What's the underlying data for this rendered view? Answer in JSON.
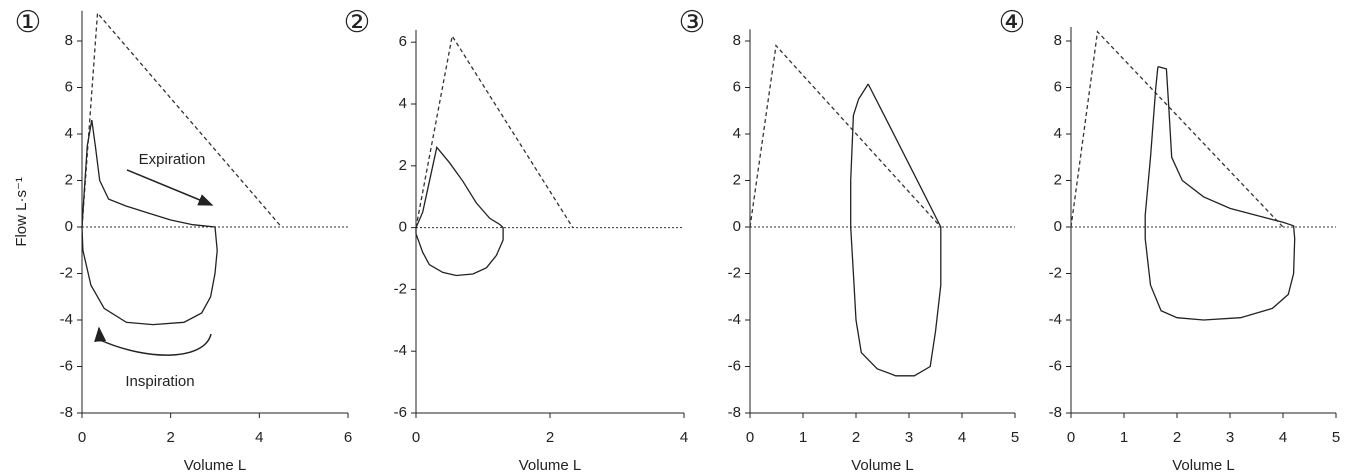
{
  "chart_data": [
    {
      "type": "line",
      "panel_label": "①",
      "x_label": "Volume L",
      "y_label": "Flow L·s⁻¹",
      "annotations": [
        "Expiration",
        "Inspiration"
      ],
      "xlim": [
        0,
        6
      ],
      "xticks": [
        0,
        2,
        4,
        6
      ],
      "ylim": [
        -8,
        9.3
      ],
      "yticks": [
        -8,
        -6,
        -4,
        -2,
        0,
        2,
        4,
        6,
        8
      ],
      "hline": 0,
      "series": [
        {
          "style": "dashed",
          "color": "#333333",
          "x": [
            0,
            0.35,
            4.5
          ],
          "values": [
            0,
            9.2,
            0
          ]
        },
        {
          "style": "solid",
          "color": "#222222",
          "x": [
            0,
            0.05,
            0.12,
            0.22,
            0.3,
            0.4,
            0.6,
            1,
            1.5,
            2,
            2.5,
            3,
            3.05,
            3,
            2.9,
            2.7,
            2.3,
            1.6,
            1,
            0.5,
            0.2,
            0.02,
            0
          ],
          "values": [
            0,
            1.5,
            3.5,
            4.6,
            3.5,
            2,
            1.2,
            0.9,
            0.6,
            0.3,
            0.1,
            0,
            -1,
            -2,
            -3,
            -3.7,
            -4.1,
            -4.2,
            -4.1,
            -3.5,
            -2.5,
            -1,
            0
          ]
        }
      ]
    },
    {
      "type": "line",
      "panel_label": "②",
      "x_label": "Volume L",
      "xlim": [
        0,
        4
      ],
      "xticks": [
        0,
        2,
        4
      ],
      "ylim": [
        -6,
        6.4
      ],
      "yticks": [
        -6,
        -4,
        -2,
        0,
        2,
        4,
        6
      ],
      "hline": 0,
      "series": [
        {
          "style": "dashed",
          "color": "#333333",
          "x": [
            0,
            0.54,
            2.34
          ],
          "values": [
            0,
            6.2,
            0
          ]
        },
        {
          "style": "solid",
          "color": "#222222",
          "x": [
            0,
            0.1,
            0.2,
            0.31,
            0.5,
            0.7,
            0.9,
            1.1,
            1.25,
            1.3,
            1.3,
            1.2,
            1.05,
            0.85,
            0.6,
            0.4,
            0.2,
            0.1,
            0,
            0
          ],
          "values": [
            0,
            0.5,
            1.5,
            2.6,
            2.1,
            1.5,
            0.8,
            0.3,
            0.1,
            0,
            -0.4,
            -0.9,
            -1.3,
            -1.5,
            -1.55,
            -1.45,
            -1.2,
            -0.8,
            -0.2,
            0
          ]
        }
      ]
    },
    {
      "type": "line",
      "panel_label": "③",
      "x_label": "Volume L",
      "xlim": [
        0,
        5
      ],
      "xticks": [
        0,
        1,
        2,
        3,
        4,
        5
      ],
      "ylim": [
        -8,
        8.5
      ],
      "yticks": [
        -8,
        -6,
        -4,
        -2,
        0,
        2,
        4,
        6,
        8
      ],
      "hline": 0,
      "series": [
        {
          "style": "dashed",
          "color": "#333333",
          "x": [
            0,
            0.49,
            3.6
          ],
          "values": [
            0,
            7.8,
            0
          ]
        },
        {
          "style": "solid",
          "color": "#222222",
          "x": [
            2.23,
            2.05,
            1.95,
            1.9,
            1.9,
            1.95,
            2.0,
            2.1,
            2.4,
            2.75,
            3.1,
            3.4,
            3.5,
            3.6,
            3.6,
            3.2,
            2.6,
            2.23
          ],
          "values": [
            6.15,
            5.5,
            4.8,
            2,
            0,
            -2,
            -4,
            -5.4,
            -6.1,
            -6.4,
            -6.4,
            -6,
            -4.5,
            -2.5,
            0,
            1.8,
            4.5,
            6.15
          ]
        }
      ]
    },
    {
      "type": "line",
      "panel_label": "④",
      "x_label": "Volume L",
      "xlim": [
        0,
        5
      ],
      "xticks": [
        0,
        1,
        2,
        3,
        4,
        5
      ],
      "ylim": [
        -8,
        8.6
      ],
      "yticks": [
        -8,
        -6,
        -4,
        -2,
        0,
        2,
        4,
        6,
        8
      ],
      "hline": 0,
      "series": [
        {
          "style": "dashed",
          "color": "#333333",
          "x": [
            0,
            0.5,
            4.0
          ],
          "values": [
            0,
            8.4,
            0
          ]
        },
        {
          "style": "solid",
          "color": "#222222",
          "x": [
            1.64,
            1.8,
            1.85,
            1.9,
            2.1,
            2.5,
            3,
            3.5,
            4,
            4.2,
            4.22,
            4.2,
            4.1,
            3.8,
            3.2,
            2.5,
            2,
            1.7,
            1.5,
            1.4,
            1.4,
            1.5,
            1.6,
            1.64
          ],
          "values": [
            6.9,
            6.8,
            5,
            3,
            2,
            1.3,
            0.8,
            0.5,
            0.2,
            0.05,
            -0.5,
            -2,
            -2.9,
            -3.5,
            -3.9,
            -4,
            -3.9,
            -3.6,
            -2.5,
            -0.5,
            0.5,
            3,
            6,
            6.9
          ]
        }
      ]
    }
  ]
}
